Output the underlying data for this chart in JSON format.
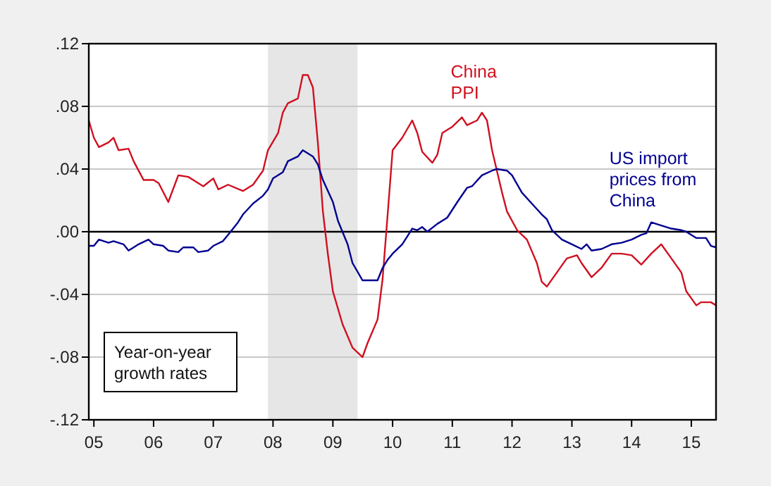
{
  "chart_data": {
    "type": "line",
    "xlim": [
      "2004-12",
      "2015-06"
    ],
    "xticks": [
      {
        "value": "2005",
        "label": "05"
      },
      {
        "value": "2006",
        "label": "06"
      },
      {
        "value": "2007",
        "label": "07"
      },
      {
        "value": "2008",
        "label": "08"
      },
      {
        "value": "2009",
        "label": "09"
      },
      {
        "value": "2010",
        "label": "10"
      },
      {
        "value": "2011",
        "label": "11"
      },
      {
        "value": "2012",
        "label": "12"
      },
      {
        "value": "2013",
        "label": "13"
      },
      {
        "value": "2014",
        "label": "14"
      },
      {
        "value": "2015",
        "label": "15"
      }
    ],
    "ylim": [
      -0.12,
      0.12
    ],
    "yticks": [
      {
        "value": -0.12,
        "label": "-.12"
      },
      {
        "value": -0.08,
        "label": "-.08"
      },
      {
        "value": -0.04,
        "label": "-.04"
      },
      {
        "value": 0,
        "label": ".00"
      },
      {
        "value": 0.04,
        "label": ".04"
      },
      {
        "value": 0.08,
        "label": ".08"
      },
      {
        "value": 0.12,
        "label": ".12"
      }
    ],
    "grid": "y",
    "bands": [
      {
        "axis": "x",
        "from": "2007-12",
        "to": "2009-06",
        "color": "#e6e6e6"
      }
    ],
    "ref_lines": [
      {
        "axis": "y",
        "value": 0,
        "color": "#000000"
      }
    ],
    "annotations": [
      "Year-on-year\ngrowth rates"
    ],
    "series": [
      {
        "name": "China\nPPI",
        "color": "#d01020",
        "x": [
          "2004-12",
          "2005-01",
          "2005-02",
          "2005-04",
          "2005-05",
          "2005-06",
          "2005-08",
          "2005-09",
          "2005-11",
          "2006-01",
          "2006-02",
          "2006-04",
          "2006-06",
          "2006-08",
          "2006-11",
          "2007-01",
          "2007-02",
          "2007-04",
          "2007-07",
          "2007-09",
          "2007-11",
          "2007-12",
          "2008-02",
          "2008-03",
          "2008-04",
          "2008-06",
          "2008-07",
          "2008-08",
          "2008-09",
          "2008-10",
          "2008-11",
          "2008-12",
          "2009-01",
          "2009-03",
          "2009-05",
          "2009-07",
          "2009-08",
          "2009-10",
          "2009-11",
          "2009-12",
          "2010-01",
          "2010-03",
          "2010-05",
          "2010-06",
          "2010-07",
          "2010-09",
          "2010-10",
          "2010-11",
          "2011-01",
          "2011-03",
          "2011-04",
          "2011-06",
          "2011-07",
          "2011-08",
          "2011-09",
          "2011-11",
          "2011-12",
          "2012-02",
          "2012-04",
          "2012-06",
          "2012-07",
          "2012-08",
          "2012-10",
          "2012-12",
          "2013-02",
          "2013-03",
          "2013-05",
          "2013-07",
          "2013-09",
          "2013-11",
          "2014-01",
          "2014-03",
          "2014-05",
          "2014-07",
          "2014-09",
          "2014-11",
          "2014-12",
          "2015-02",
          "2015-03",
          "2015-05",
          "2015-06"
        ],
        "values": [
          0.071,
          0.06,
          0.054,
          0.057,
          0.06,
          0.052,
          0.053,
          0.045,
          0.033,
          0.033,
          0.031,
          0.019,
          0.036,
          0.035,
          0.029,
          0.034,
          0.027,
          0.03,
          0.026,
          0.03,
          0.039,
          0.052,
          0.063,
          0.076,
          0.082,
          0.085,
          0.1,
          0.1,
          0.092,
          0.057,
          0.013,
          -0.014,
          -0.038,
          -0.059,
          -0.074,
          -0.08,
          -0.071,
          -0.056,
          -0.03,
          0.01,
          0.052,
          0.06,
          0.071,
          0.063,
          0.051,
          0.044,
          0.049,
          0.063,
          0.067,
          0.073,
          0.068,
          0.071,
          0.076,
          0.071,
          0.052,
          0.025,
          0.013,
          0.001,
          -0.005,
          -0.02,
          -0.032,
          -0.035,
          -0.026,
          -0.017,
          -0.015,
          -0.02,
          -0.029,
          -0.023,
          -0.014,
          -0.014,
          -0.015,
          -0.021,
          -0.014,
          -0.008,
          -0.017,
          -0.026,
          -0.038,
          -0.047,
          -0.045,
          -0.045,
          -0.047
        ]
      },
      {
        "name": "US import\nprices from\nChina",
        "color": "#000090",
        "x": [
          "2004-12",
          "2005-01",
          "2005-02",
          "2005-04",
          "2005-05",
          "2005-07",
          "2005-08",
          "2005-09",
          "2005-10",
          "2005-12",
          "2006-01",
          "2006-03",
          "2006-04",
          "2006-06",
          "2006-07",
          "2006-09",
          "2006-10",
          "2006-12",
          "2007-01",
          "2007-03",
          "2007-04",
          "2007-06",
          "2007-07",
          "2007-09",
          "2007-11",
          "2007-12",
          "2008-01",
          "2008-03",
          "2008-04",
          "2008-06",
          "2008-07",
          "2008-09",
          "2008-10",
          "2008-11",
          "2009-01",
          "2009-02",
          "2009-04",
          "2009-05",
          "2009-07",
          "2009-08",
          "2009-10",
          "2009-11",
          "2009-12",
          "2010-01",
          "2010-03",
          "2010-05",
          "2010-06",
          "2010-07",
          "2010-08",
          "2010-10",
          "2010-12",
          "2011-02",
          "2011-04",
          "2011-05",
          "2011-07",
          "2011-09",
          "2011-10",
          "2011-12",
          "2012-01",
          "2012-03",
          "2012-05",
          "2012-07",
          "2012-08",
          "2012-09",
          "2012-11",
          "2013-01",
          "2013-03",
          "2013-04",
          "2013-05",
          "2013-07",
          "2013-09",
          "2013-11",
          "2014-01",
          "2014-03",
          "2014-04",
          "2014-05",
          "2014-07",
          "2014-09",
          "2014-11",
          "2014-12",
          "2015-02",
          "2015-04",
          "2015-05",
          "2015-06"
        ],
        "values": [
          -0.009,
          -0.009,
          -0.005,
          -0.007,
          -0.006,
          -0.008,
          -0.012,
          -0.01,
          -0.008,
          -0.005,
          -0.008,
          -0.009,
          -0.012,
          -0.013,
          -0.01,
          -0.01,
          -0.013,
          -0.012,
          -0.009,
          -0.006,
          -0.002,
          0.006,
          0.011,
          0.018,
          0.023,
          0.027,
          0.034,
          0.038,
          0.045,
          0.048,
          0.052,
          0.048,
          0.043,
          0.033,
          0.019,
          0.007,
          -0.008,
          -0.02,
          -0.031,
          -0.031,
          -0.031,
          -0.023,
          -0.018,
          -0.014,
          -0.008,
          0.002,
          0.001,
          0.003,
          0,
          0.005,
          0.009,
          0.019,
          0.028,
          0.029,
          0.036,
          0.039,
          0.04,
          0.039,
          0.036,
          0.025,
          0.018,
          0.011,
          0.008,
          0.001,
          -0.005,
          -0.008,
          -0.011,
          -0.008,
          -0.012,
          -0.011,
          -0.008,
          -0.007,
          -0.005,
          -0.002,
          -0.001,
          0.006,
          0.004,
          0.002,
          0.001,
          0,
          -0.004,
          -0.004,
          -0.009,
          -0.01
        ]
      }
    ]
  }
}
